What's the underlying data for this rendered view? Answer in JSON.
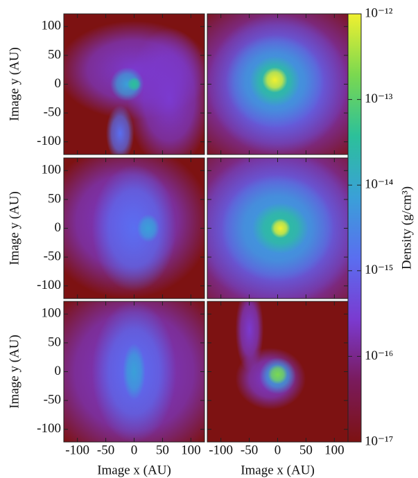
{
  "chart_data": {
    "type": "image-grid",
    "xlabel": "Image x  (AU)",
    "ylabel": "Image y  (AU)",
    "xlim": [
      -124,
      124
    ],
    "ylim": [
      -122,
      122
    ],
    "xticks": [
      -100,
      -50,
      0,
      50,
      100
    ],
    "yticks": [
      -100,
      -50,
      0,
      50,
      100
    ],
    "colorbar": {
      "label": "Density  (g/cm³)",
      "scale": "log",
      "lim": [
        1e-17,
        1e-12
      ],
      "ticks": [
        {
          "value": 1e-12,
          "label": "10⁻¹²"
        },
        {
          "value": 1e-13,
          "label": "10⁻¹³"
        },
        {
          "value": 1e-14,
          "label": "10⁻¹⁴"
        },
        {
          "value": 1e-15,
          "label": "10⁻¹⁵"
        },
        {
          "value": 1e-16,
          "label": "10⁻¹⁶"
        },
        {
          "value": 1e-17,
          "label": "10⁻¹⁷"
        }
      ],
      "colors": [
        "#7d1212",
        "#7a1a5c",
        "#7b3ad0",
        "#5a6ef0",
        "#3aa0d8",
        "#2cc09a",
        "#7ad850",
        "#f0f030"
      ]
    }
  }
}
